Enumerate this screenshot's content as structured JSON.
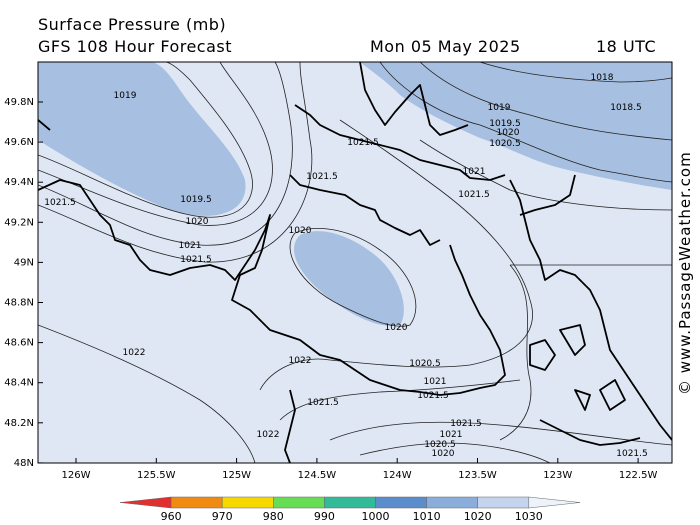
{
  "header": {
    "title": "Surface Pressure (mb)",
    "subtitle": "GFS 108 Hour Forecast",
    "date": "Mon 05 May 2025",
    "time": "18 UTC"
  },
  "map": {
    "lat_labels": [
      "49.8N",
      "49.6N",
      "49.4N",
      "49.2N",
      "49N",
      "48.8N",
      "48.6N",
      "48.4N",
      "48.2N",
      "48N"
    ],
    "lon_labels": [
      "126W",
      "125.5W",
      "125W",
      "124.5W",
      "124W",
      "123.5W",
      "123W",
      "122.5W"
    ],
    "contour_labels": [
      "1019",
      "1019.5",
      "1020",
      "1021",
      "1021.5",
      "1021.5",
      "1021.5",
      "1021.5",
      "1020",
      "1020",
      "1022",
      "1022",
      "1020.5",
      "1021",
      "1021.5",
      "1021.5",
      "1022",
      "1021.5",
      "1021",
      "1020.5",
      "1020",
      "1018",
      "1018.5",
      "1019",
      "1019.5",
      "1020",
      "1020.5",
      "1021",
      "1021.5",
      "1021.5"
    ]
  },
  "colorbar": {
    "ticks": [
      960,
      970,
      980,
      990,
      1000,
      1010,
      1020,
      1030
    ],
    "colors": [
      "#e03030",
      "#f08a10",
      "#f5d800",
      "#66dd55",
      "#33bb99",
      "#5b8ccc",
      "#8aaddb",
      "#c4d4ec",
      "#eef2fa"
    ]
  },
  "credit": "© www.PassageWeather.com"
}
